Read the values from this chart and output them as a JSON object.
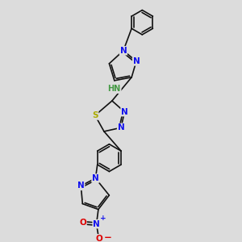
{
  "bg_color": "#dcdcdc",
  "bond_color": "#111111",
  "bond_lw": 1.2,
  "atom_colors": {
    "N": "#1010ee",
    "S": "#aaaa00",
    "O": "#dd0000",
    "H": "#449944",
    "C": "#111111"
  },
  "fs": 7.5,
  "xlim": [
    0,
    10
  ],
  "ylim": [
    0,
    10
  ]
}
